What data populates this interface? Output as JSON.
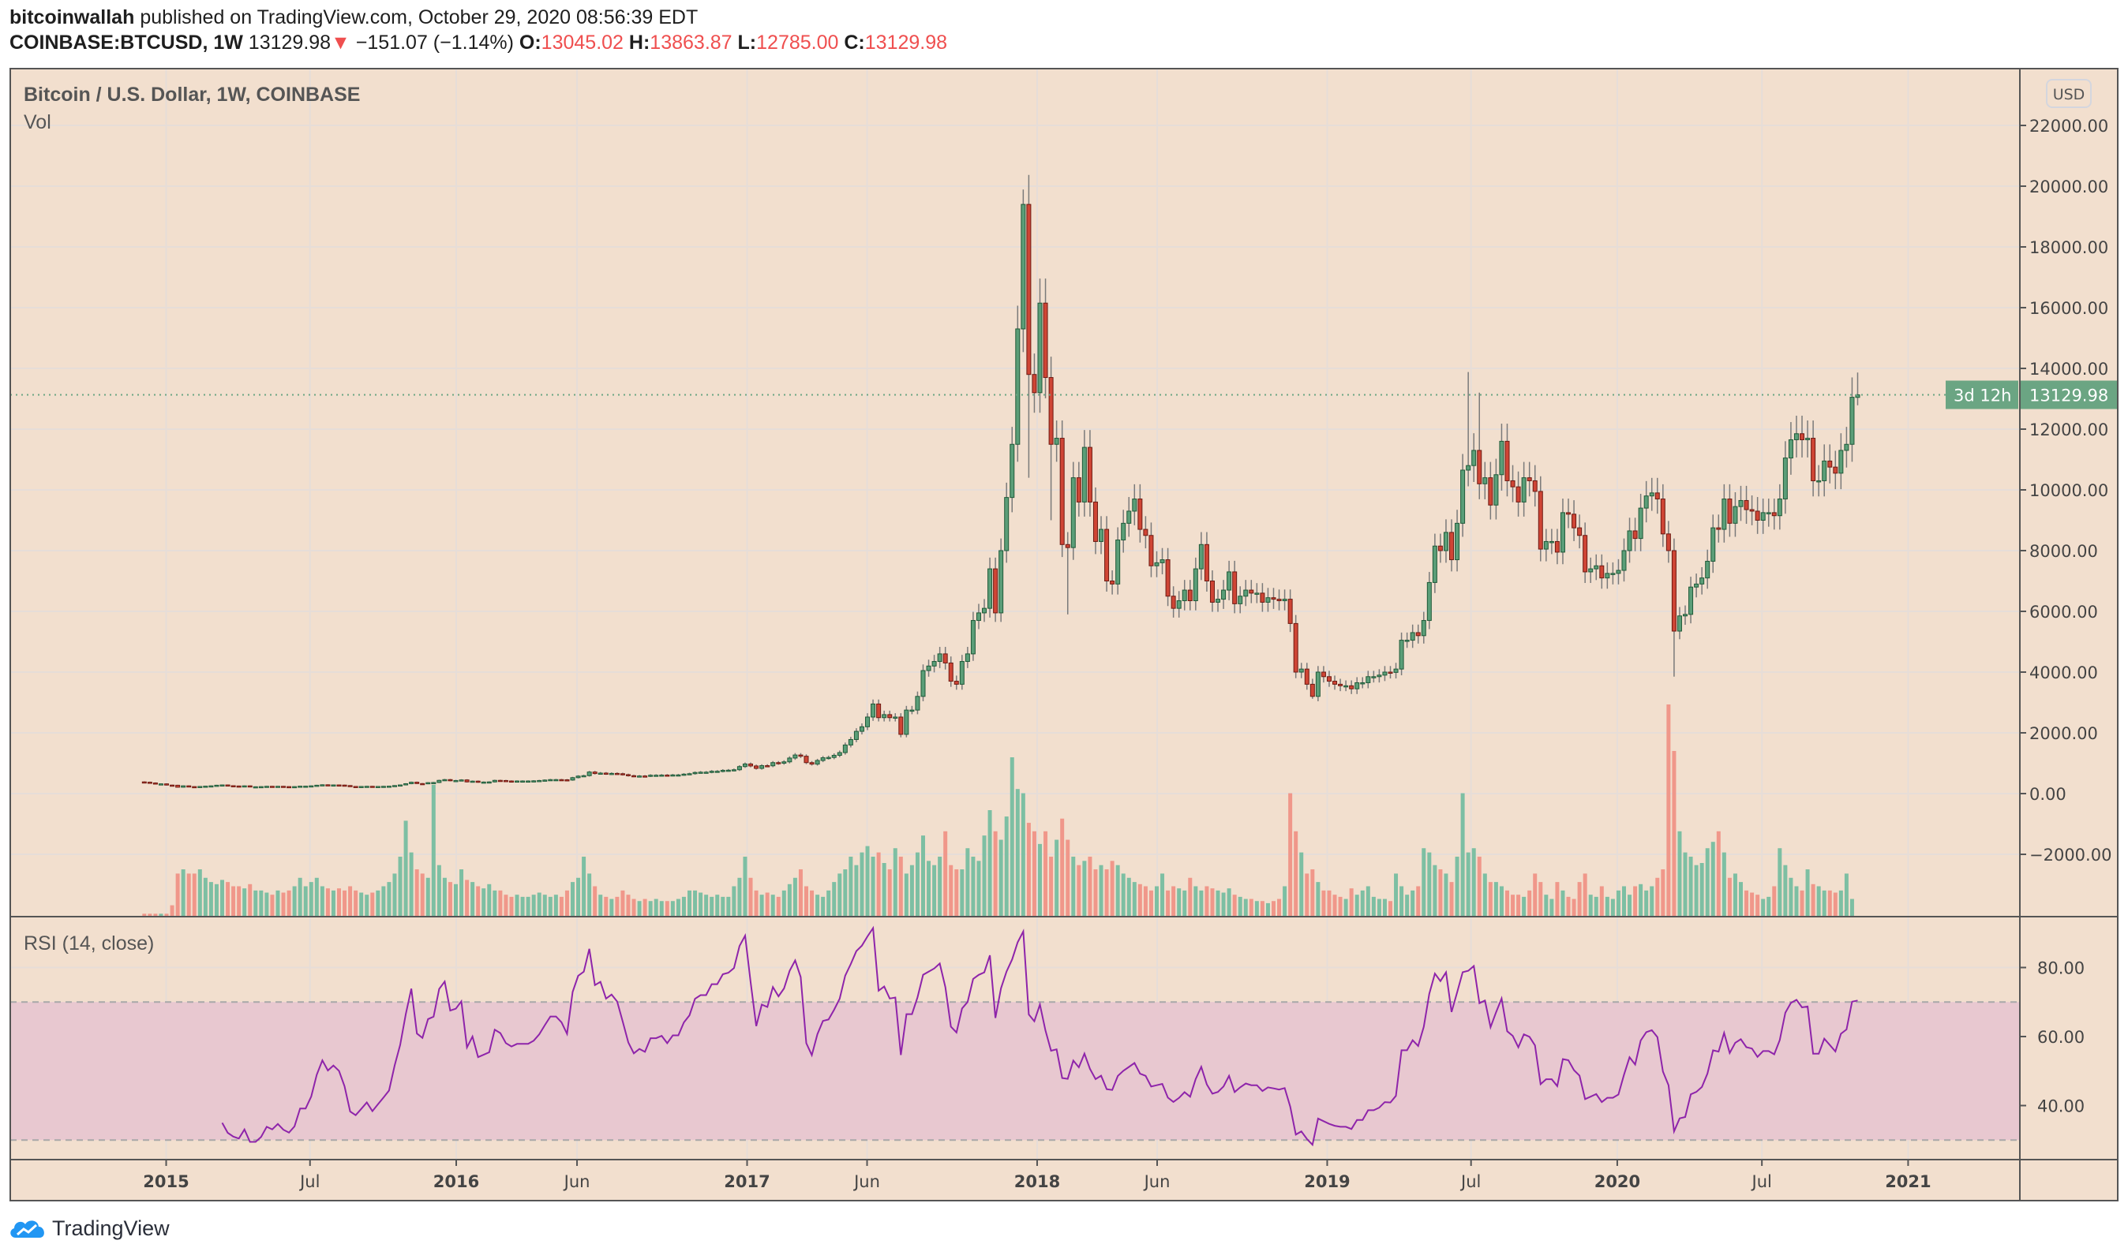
{
  "header": {
    "author": "bitcoinwallah",
    "published": "published on TradingView.com, October 29, 2020 08:56:39 EDT",
    "symbol": "COINBASE:BTCUSD, 1W",
    "last": "13129.98",
    "change": "−151.07 (−1.14%)",
    "o_label": "O:",
    "o": "13045.02",
    "h_label": "H:",
    "h": "13863.87",
    "l_label": "L:",
    "l": "12785.00",
    "c_label": "C:",
    "c": "13129.98"
  },
  "footer": {
    "brand": "TradingView"
  },
  "colors": {
    "background": "#f2dfce",
    "up_body": "#5b9e78",
    "up_border": "#1f5a38",
    "down_body": "#cf4535",
    "down_border": "#6e1a12",
    "wick": "#7a7a7a",
    "vol_up": "#7dbfa3",
    "vol_down": "#f0978a",
    "rsi_line": "#8e24aa",
    "rsi_band": "#e8c8d0",
    "last_price": "#6ba583"
  },
  "chart_data": [
    {
      "type": "candlestick",
      "title": "Bitcoin / U.S. Dollar, 1W, COINBASE",
      "volume_label": "Vol",
      "currency_button": "USD",
      "interval": "1W",
      "first_week": "2014-12-01",
      "y_ticks": [
        "22000.00",
        "20000.00",
        "18000.00",
        "16000.00",
        "14000.00",
        "12000.00",
        "10000.00",
        "8000.00",
        "6000.00",
        "4000.00",
        "2000.00",
        "0.00",
        "−2000.00"
      ],
      "last_price_label": "13129.98",
      "countdown_label": "3d 12h",
      "last_candle": {
        "open": 13045.02,
        "high": 13863.87,
        "low": 12785.0,
        "close": 13129.98
      },
      "notable_extremes": [
        {
          "week": "2017-12-11",
          "high": 19891
        },
        {
          "week": "2017-12-18",
          "low": 10400
        },
        {
          "week": "2018-01-15",
          "low": 9000
        },
        {
          "week": "2018-02-05",
          "low": 5900
        },
        {
          "week": "2018-12-10",
          "low": 3122
        },
        {
          "week": "2019-06-24",
          "high": 13880
        },
        {
          "week": "2019-07-08",
          "high": 13200
        },
        {
          "week": "2020-03-09",
          "low": 3850
        }
      ],
      "closes": [
        375,
        350,
        320,
        320,
        280,
        275,
        210,
        255,
        230,
        225,
        235,
        245,
        255,
        275,
        285,
        260,
        250,
        245,
        255,
        225,
        225,
        230,
        240,
        235,
        240,
        230,
        225,
        230,
        245,
        245,
        255,
        275,
        290,
        280,
        285,
        280,
        265,
        235,
        230,
        235,
        240,
        230,
        235,
        240,
        245,
        265,
        285,
        325,
        375,
        330,
        325,
        360,
        365,
        435,
        460,
        425,
        430,
        450,
        385,
        410,
        375,
        380,
        385,
        435,
        430,
        415,
        410,
        415,
        415,
        415,
        420,
        430,
        445,
        460,
        460,
        455,
        445,
        525,
        575,
        590,
        710,
        660,
        675,
        650,
        665,
        655,
        625,
        590,
        570,
        580,
        575,
        605,
        605,
        610,
        600,
        615,
        615,
        640,
        655,
        695,
        705,
        705,
        735,
        735,
        765,
        770,
        785,
        890,
        975,
        910,
        830,
        920,
        915,
        1020,
        1000,
        1045,
        1170,
        1270,
        1230,
        1020,
        970,
        1090,
        1180,
        1190,
        1260,
        1350,
        1600,
        1780,
        2050,
        2200,
        2520,
        2950,
        2500,
        2600,
        2500,
        2520,
        1950,
        2750,
        2750,
        3200,
        4050,
        4200,
        4350,
        4600,
        4300,
        3700,
        3600,
        4350,
        4600,
        5700,
        5950,
        6100,
        7400,
        5950,
        8000,
        9750,
        11500,
        15300,
        19400,
        13800,
        13200,
        16150,
        13700,
        11500,
        11700,
        8200,
        8100,
        10400,
        9600,
        11400,
        9600,
        8300,
        8700,
        7000,
        6900,
        8350,
        8900,
        9300,
        9700,
        8700,
        8500,
        7500,
        7600,
        7700,
        6500,
        6100,
        6350,
        6700,
        6350,
        7400,
        8200,
        7000,
        6300,
        6400,
        6700,
        7300,
        6250,
        6500,
        6700,
        6600,
        6600,
        6300,
        6450,
        6400,
        6350,
        6400,
        5600,
        4000,
        4100,
        3600,
        3200,
        4000,
        3850,
        3700,
        3600,
        3550,
        3550,
        3450,
        3650,
        3650,
        3850,
        3850,
        3900,
        4000,
        3990,
        4100,
        5050,
        5050,
        5300,
        5200,
        5700,
        6950,
        8150,
        8000,
        8600,
        7700,
        8900,
        10650,
        10800,
        11300,
        10200,
        10400,
        9500,
        10500,
        11600,
        10300,
        10100,
        9600,
        10400,
        10300,
        9950,
        8050,
        8300,
        8300,
        7950,
        9250,
        9200,
        8750,
        8500,
        7300,
        7400,
        7500,
        7100,
        7250,
        7250,
        7350,
        8000,
        8650,
        8400,
        9400,
        9800,
        9900,
        9700,
        8550,
        8000,
        5350,
        5850,
        5900,
        6800,
        6900,
        7100,
        7650,
        8750,
        8700,
        9700,
        8900,
        9450,
        9650,
        9350,
        9300,
        9000,
        9250,
        9250,
        9150,
        9700,
        11050,
        11650,
        11850,
        11650,
        11700,
        10300,
        10300,
        10950,
        10750,
        10550,
        11300,
        11500,
        13050,
        13129.98
      ],
      "volume_relative": [
        1,
        1,
        1,
        1,
        1,
        5,
        20,
        22,
        20,
        20,
        22,
        18,
        16,
        15,
        17,
        16,
        14,
        14,
        13,
        15,
        12,
        12,
        11,
        10,
        12,
        11,
        12,
        14,
        18,
        14,
        16,
        18,
        14,
        13,
        12,
        13,
        12,
        14,
        12,
        11,
        10,
        11,
        12,
        14,
        16,
        20,
        28,
        45,
        30,
        22,
        20,
        18,
        62,
        24,
        18,
        16,
        15,
        22,
        17,
        16,
        14,
        13,
        15,
        12,
        12,
        10,
        9,
        10,
        9,
        9,
        10,
        11,
        10,
        9,
        10,
        9,
        12,
        16,
        18,
        28,
        20,
        14,
        10,
        9,
        8,
        9,
        12,
        10,
        8,
        7,
        8,
        7,
        8,
        7,
        7,
        7,
        8,
        9,
        12,
        12,
        11,
        10,
        9,
        10,
        9,
        9,
        14,
        18,
        28,
        18,
        12,
        10,
        11,
        10,
        9,
        12,
        15,
        18,
        22,
        14,
        12,
        10,
        9,
        12,
        16,
        20,
        22,
        28,
        24,
        30,
        33,
        28,
        30,
        25,
        22,
        32,
        28,
        20,
        24,
        30,
        38,
        26,
        24,
        28,
        40,
        24,
        22,
        22,
        32,
        28,
        26,
        38,
        50,
        40,
        36,
        47,
        75,
        60,
        58,
        44,
        40,
        34,
        40,
        28,
        36,
        46,
        36,
        28,
        24,
        26,
        28,
        22,
        24,
        22,
        26,
        24,
        20,
        18,
        16,
        15,
        14,
        12,
        14,
        20,
        12,
        14,
        13,
        12,
        18,
        14,
        12,
        14,
        13,
        12,
        11,
        13,
        10,
        9,
        8,
        8,
        7,
        7,
        6,
        7,
        8,
        14,
        58,
        40,
        30,
        20,
        22,
        16,
        12,
        12,
        10,
        9,
        8,
        13,
        10,
        12,
        14,
        9,
        8,
        8,
        7,
        20,
        14,
        10,
        12,
        14,
        32,
        30,
        24,
        22,
        20,
        16,
        28,
        58,
        30,
        32,
        28,
        20,
        16,
        16,
        14,
        12,
        10,
        10,
        9,
        12,
        20,
        16,
        10,
        8,
        16,
        12,
        9,
        8,
        16,
        20,
        10,
        9,
        14,
        9,
        8,
        12,
        14,
        10,
        14,
        15,
        12,
        14,
        18,
        22,
        100,
        78,
        40,
        30,
        28,
        24,
        25,
        32,
        35,
        40,
        30,
        18,
        20,
        16,
        12,
        11,
        10,
        8,
        9,
        14,
        32,
        24,
        18,
        14,
        12,
        22,
        15,
        14,
        12,
        12,
        11,
        12,
        20,
        8
      ]
    },
    {
      "type": "line",
      "title": "RSI (14, close)",
      "period": 14,
      "y_ticks": [
        "80.00",
        "60.00",
        "40.00"
      ],
      "overbought": 70,
      "oversold": 30
    }
  ],
  "x_axis": {
    "ticks": [
      {
        "label": "2015",
        "date": "2015-01-01",
        "major": true
      },
      {
        "label": "Jul",
        "date": "2015-07-01",
        "major": false
      },
      {
        "label": "2016",
        "date": "2016-01-01",
        "major": true
      },
      {
        "label": "Jun",
        "date": "2016-06-01",
        "major": false
      },
      {
        "label": "2017",
        "date": "2017-01-01",
        "major": true
      },
      {
        "label": "Jun",
        "date": "2017-06-01",
        "major": false
      },
      {
        "label": "2018",
        "date": "2018-01-01",
        "major": true
      },
      {
        "label": "Jun",
        "date": "2018-06-01",
        "major": false
      },
      {
        "label": "2019",
        "date": "2019-01-01",
        "major": true
      },
      {
        "label": "Jul",
        "date": "2019-07-01",
        "major": false
      },
      {
        "label": "2020",
        "date": "2020-01-01",
        "major": true
      },
      {
        "label": "Jul",
        "date": "2020-07-01",
        "major": false
      },
      {
        "label": "2021",
        "date": "2021-01-01",
        "major": true
      }
    ]
  }
}
